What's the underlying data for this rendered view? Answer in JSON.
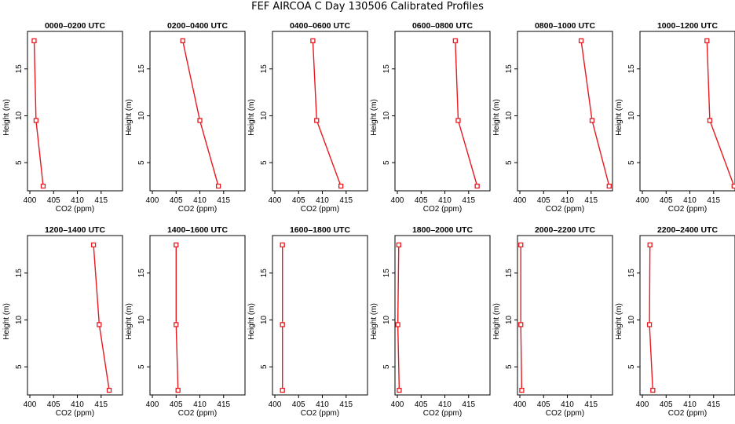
{
  "title": "FEF AIRCOA C  Day 130506  Calibrated Profiles",
  "chart_data": [
    {
      "type": "line",
      "title": "0000–0200 UTC",
      "xlabel": "CO2 (ppm)",
      "ylabel": "Height (m)",
      "x": [
        400.9,
        401.3,
        402.8
      ],
      "y": [
        18,
        9.5,
        2.5
      ]
    },
    {
      "type": "line",
      "title": "0200–0400 UTC",
      "xlabel": "CO2 (ppm)",
      "ylabel": "Height (m)",
      "x": [
        406.4,
        410.0,
        413.9
      ],
      "y": [
        18,
        9.5,
        2.5
      ]
    },
    {
      "type": "line",
      "title": "0400–0600 UTC",
      "xlabel": "CO2 (ppm)",
      "ylabel": "Height (m)",
      "x": [
        408.0,
        408.8,
        413.9
      ],
      "y": [
        18,
        9.5,
        2.5
      ]
    },
    {
      "type": "line",
      "title": "0600–0800 UTC",
      "xlabel": "CO2 (ppm)",
      "ylabel": "Height (m)",
      "x": [
        412.2,
        412.8,
        416.8
      ],
      "y": [
        18,
        9.5,
        2.5
      ]
    },
    {
      "type": "line",
      "title": "0800–1000 UTC",
      "xlabel": "CO2 (ppm)",
      "ylabel": "Height (m)",
      "x": [
        412.9,
        415.2,
        418.8
      ],
      "y": [
        18,
        9.5,
        2.5
      ]
    },
    {
      "type": "line",
      "title": "1000–1200 UTC",
      "xlabel": "CO2 (ppm)",
      "ylabel": "Height (m)",
      "x": [
        413.6,
        414.2,
        419.3
      ],
      "y": [
        18,
        9.5,
        2.5
      ]
    },
    {
      "type": "line",
      "title": "1200–1400 UTC",
      "xlabel": "CO2 (ppm)",
      "ylabel": "Height (m)",
      "x": [
        413.4,
        414.6,
        416.7
      ],
      "y": [
        18,
        9.5,
        2.5
      ]
    },
    {
      "type": "line",
      "title": "1400–1600 UTC",
      "xlabel": "CO2 (ppm)",
      "ylabel": "Height (m)",
      "x": [
        405.0,
        405.0,
        405.4
      ],
      "y": [
        18,
        9.5,
        2.5
      ]
    },
    {
      "type": "line",
      "title": "1600–1800 UTC",
      "xlabel": "CO2 (ppm)",
      "ylabel": "Height (m)",
      "x": [
        401.6,
        401.6,
        401.6
      ],
      "y": [
        18,
        9.5,
        2.5
      ]
    },
    {
      "type": "line",
      "title": "1800–2000 UTC",
      "xlabel": "CO2 (ppm)",
      "ylabel": "Height (m)",
      "x": [
        400.3,
        400.1,
        400.4
      ],
      "y": [
        18,
        9.5,
        2.5
      ]
    },
    {
      "type": "line",
      "title": "2000–2200 UTC",
      "xlabel": "CO2 (ppm)",
      "ylabel": "Height (m)",
      "x": [
        400.2,
        400.2,
        400.4
      ],
      "y": [
        18,
        9.5,
        2.5
      ]
    },
    {
      "type": "line",
      "title": "2200–2400 UTC",
      "xlabel": "CO2 (ppm)",
      "ylabel": "Height (m)",
      "x": [
        401.6,
        401.5,
        402.2
      ],
      "y": [
        18,
        9.5,
        2.5
      ]
    }
  ],
  "axes": {
    "xlim": [
      399.5,
      419.5
    ],
    "ylim": [
      2,
      19
    ],
    "xticks": [
      400,
      405,
      410,
      415
    ],
    "yticks": [
      5,
      10,
      15
    ],
    "line_color": "#e8191f",
    "marker": "open-square"
  }
}
